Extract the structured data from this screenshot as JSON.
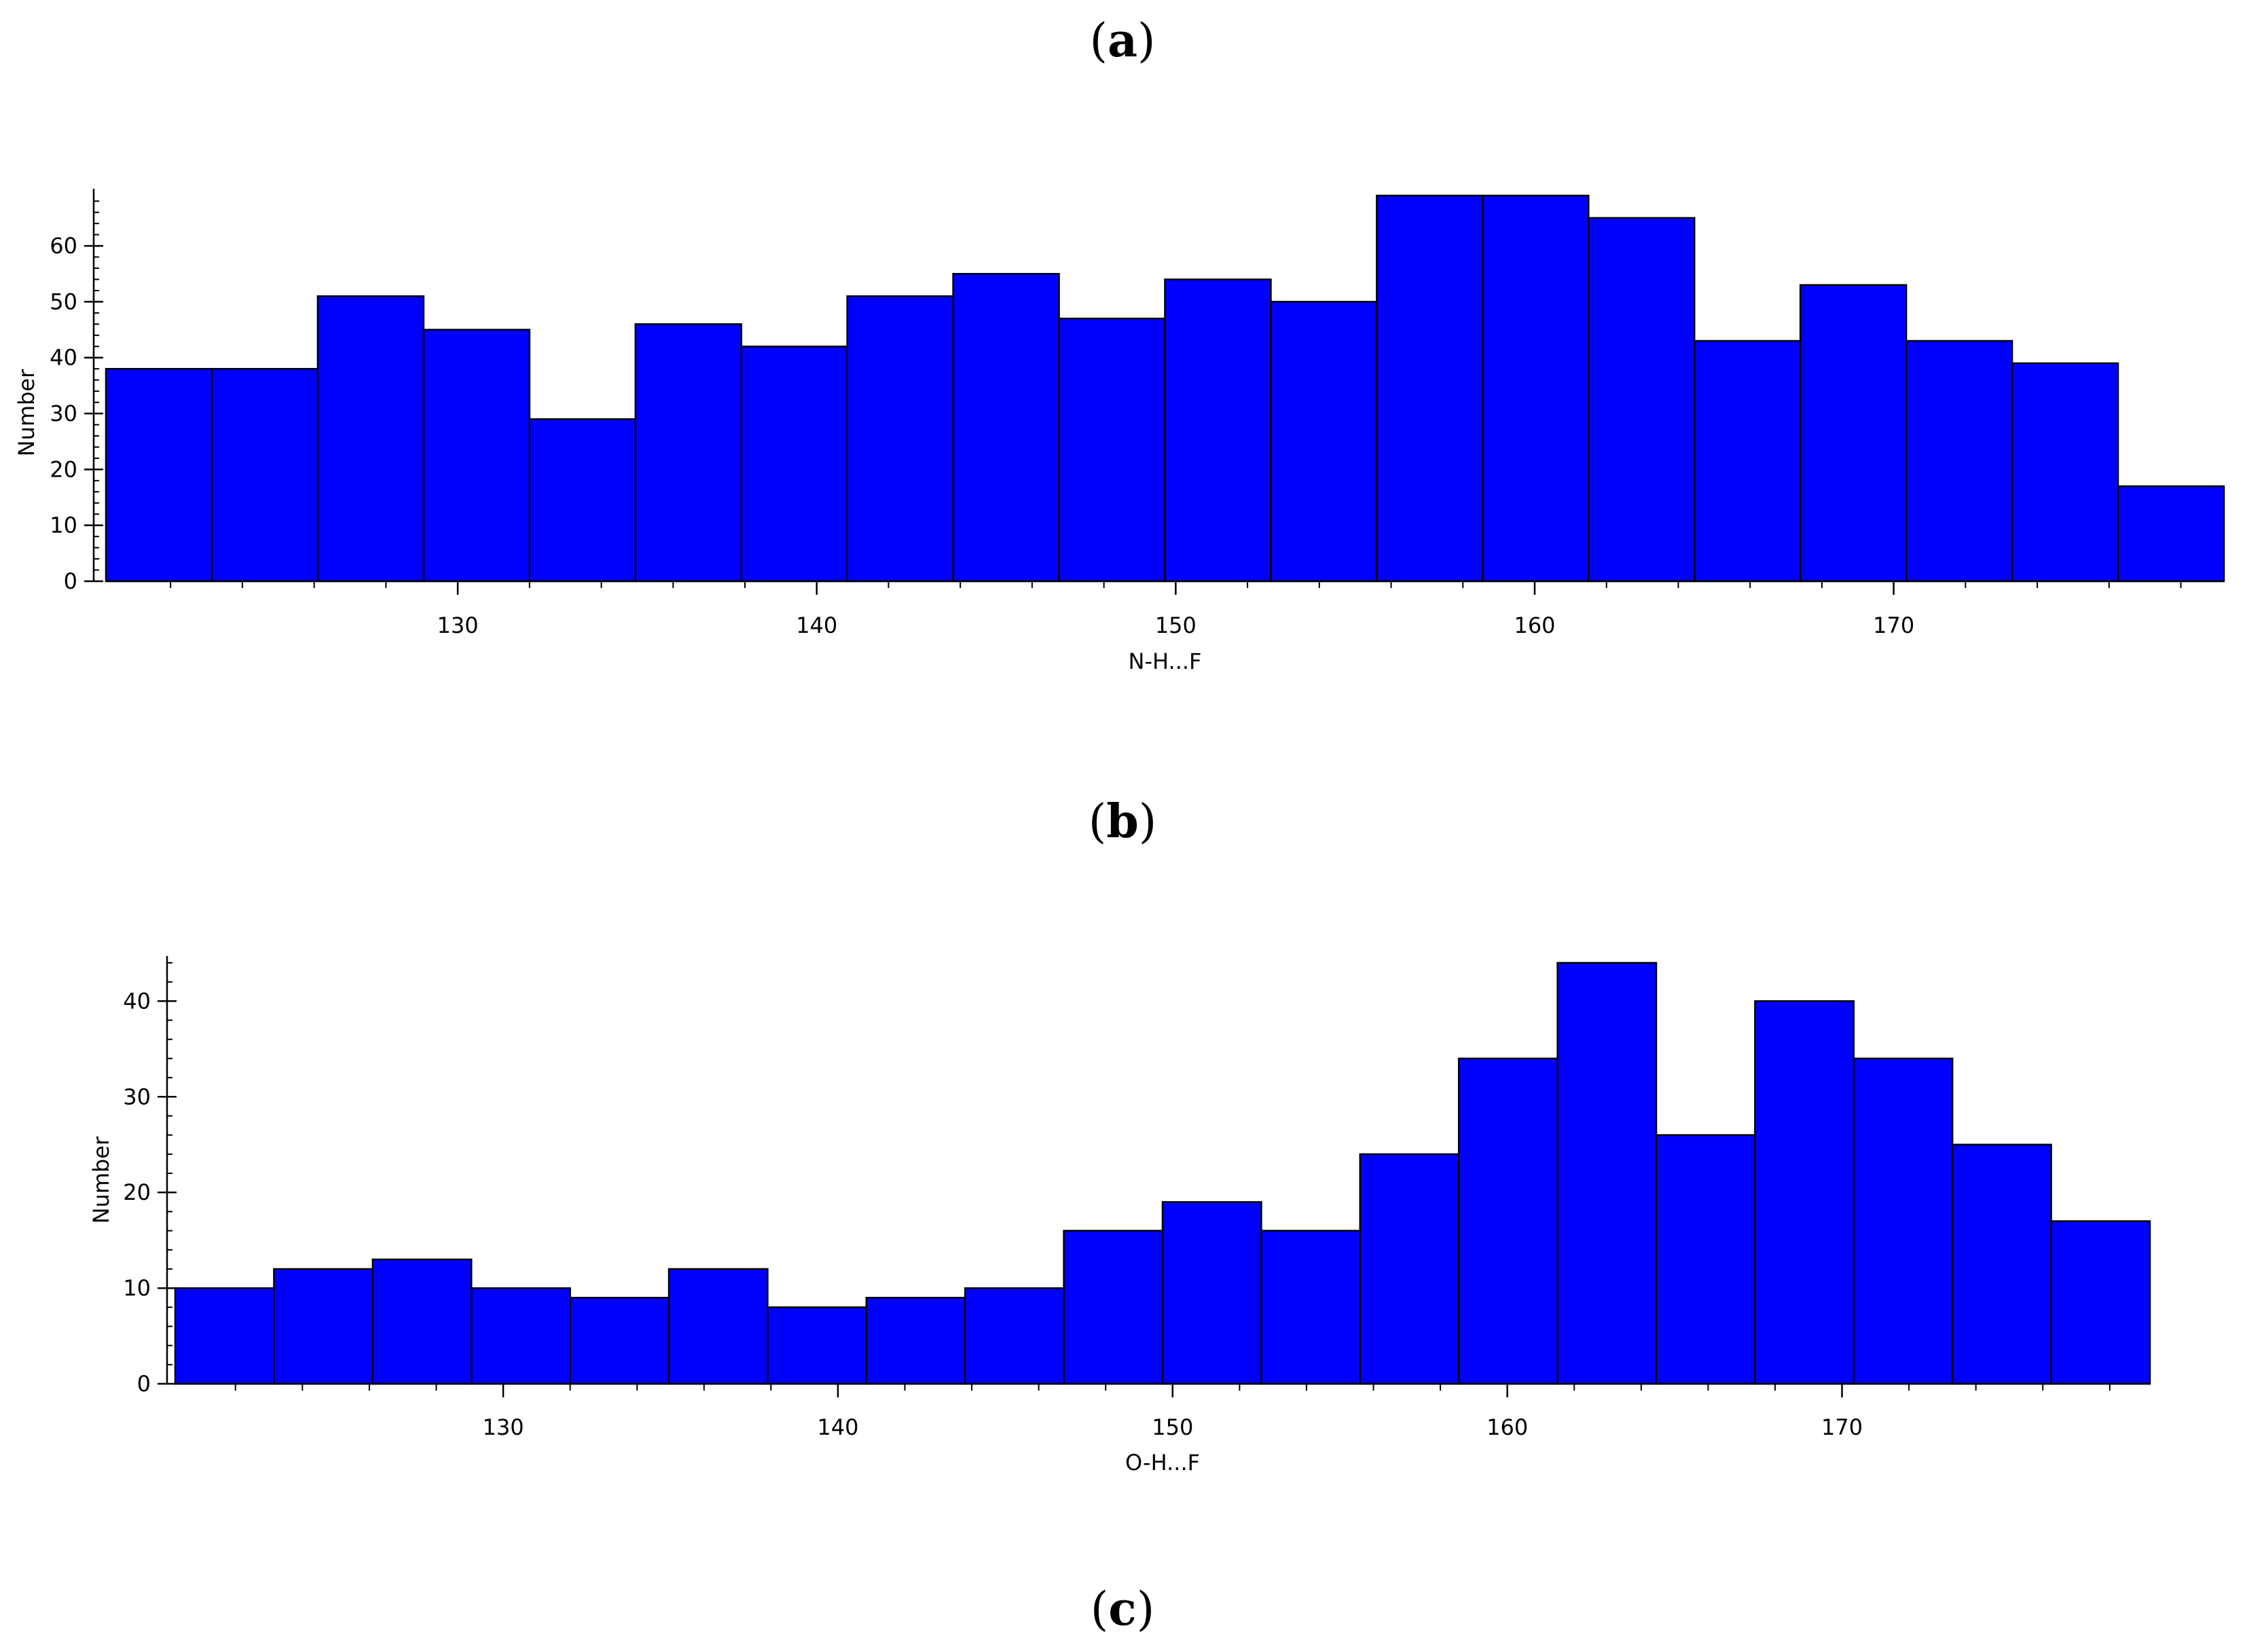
{
  "labels": {
    "a": {
      "open": "(",
      "letter": "a",
      "close": ")"
    },
    "b": {
      "open": "(",
      "letter": "b",
      "close": ")"
    },
    "c": {
      "open": "(",
      "letter": "c",
      "close": ")"
    }
  },
  "colors": {
    "bar_fill": "#0000ff",
    "bar_stroke": "#000000",
    "axis": "#000000"
  },
  "chart_data": [
    {
      "type": "bar",
      "histogram": true,
      "title": "",
      "xlabel": "N-H...F",
      "ylabel": "Number",
      "bin_width": 2.95,
      "bin_edges": [
        120.2,
        123.15,
        126.1,
        129.05,
        132.0,
        134.95,
        137.9,
        140.85,
        143.8,
        146.75,
        149.7,
        152.65,
        155.6,
        158.55,
        161.5,
        164.45,
        167.4,
        170.35,
        173.3,
        176.25,
        179.2
      ],
      "values": [
        38,
        38,
        51,
        45,
        29,
        46,
        42,
        51,
        55,
        47,
        54,
        50,
        69,
        69,
        65,
        43,
        53,
        43,
        39,
        17
      ],
      "xlim": [
        120.2,
        179.2
      ],
      "ylim": [
        0,
        69
      ],
      "xticks": [
        130,
        140,
        150,
        160,
        170
      ],
      "yticks": [
        0,
        10,
        20,
        30,
        40,
        50,
        60
      ],
      "grid": false,
      "legend": "none"
    },
    {
      "type": "bar",
      "histogram": true,
      "title": "",
      "xlabel": "O-H...F",
      "ylabel": "Number",
      "bin_width": 2.95,
      "bin_edges": [
        120.2,
        123.15,
        126.1,
        129.05,
        132.0,
        134.95,
        137.9,
        140.85,
        143.8,
        146.75,
        149.7,
        152.65,
        155.6,
        158.55,
        161.5,
        164.45,
        167.4,
        170.35,
        173.3,
        176.25,
        179.2
      ],
      "values": [
        10,
        12,
        13,
        10,
        9,
        12,
        8,
        9,
        10,
        16,
        19,
        16,
        24,
        34,
        44,
        26,
        40,
        34,
        25,
        17
      ],
      "xlim": [
        120.2,
        179.2
      ],
      "ylim": [
        0,
        44
      ],
      "xticks": [
        130,
        140,
        150,
        160,
        170
      ],
      "yticks": [
        0,
        10,
        20,
        30,
        40
      ],
      "grid": false,
      "legend": "none"
    }
  ]
}
